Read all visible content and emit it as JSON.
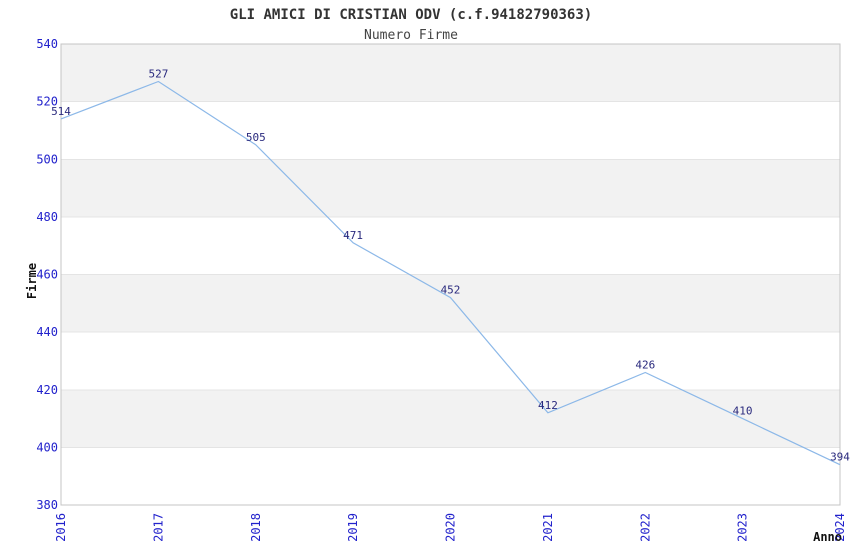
{
  "chart_data": {
    "type": "line",
    "title": "GLI AMICI DI CRISTIAN ODV (c.f.94182790363)",
    "subtitle": "Numero Firme",
    "xlabel": "Anno",
    "ylabel": "Firme",
    "categories": [
      "2016",
      "2017",
      "2018",
      "2019",
      "2020",
      "2021",
      "2022",
      "2023",
      "2024"
    ],
    "values": [
      514,
      527,
      505,
      471,
      452,
      412,
      426,
      410,
      394
    ],
    "ylim": [
      380,
      540
    ],
    "ytick_step": 20,
    "yticks": [
      380,
      400,
      420,
      440,
      460,
      480,
      500,
      520,
      540
    ],
    "grid": "horizontal gridlines with alternating shaded bands",
    "legend": "none",
    "x_tick_rotation": 90,
    "colors": {
      "line": "#8CB8E8",
      "axis_tick_label": "#2222CC",
      "data_label": "#2A2A7E",
      "band": "#F2F2F2",
      "gridline": "#E4E4E4",
      "plot_border": "#C4C4C4",
      "title_text": "#333333",
      "subtitle_text": "#444444",
      "axis_title_text": "#111111",
      "background": "#FFFFFF"
    }
  }
}
